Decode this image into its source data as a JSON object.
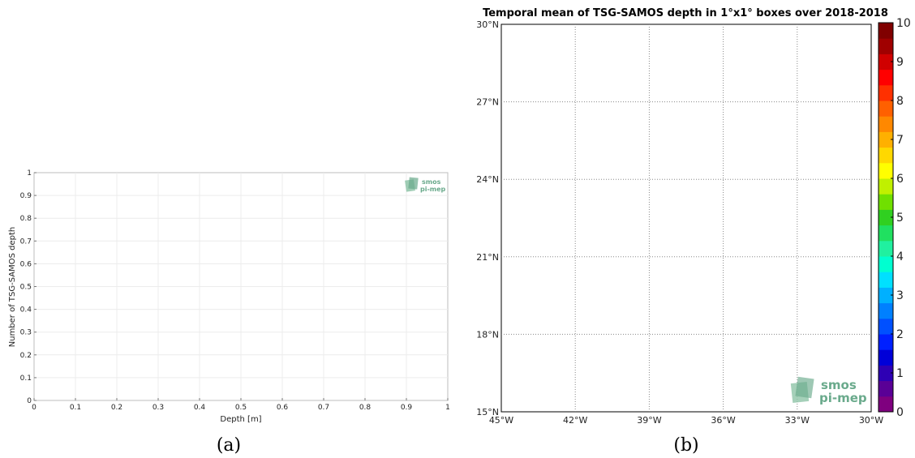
{
  "chart_data": [
    {
      "type": "line",
      "xlabel": "Depth [m]",
      "ylabel": "Number of TSG-SAMOS depth",
      "xlim": [
        0,
        1
      ],
      "ylim": [
        0,
        1
      ],
      "xticks": [
        "0",
        "0.1",
        "0.2",
        "0.3",
        "0.4",
        "0.5",
        "0.6",
        "0.7",
        "0.8",
        "0.9",
        "1"
      ],
      "yticks": [
        "0",
        "0.1",
        "0.2",
        "0.3",
        "0.4",
        "0.5",
        "0.6",
        "0.7",
        "0.8",
        "0.9",
        "1"
      ],
      "grid": true,
      "series": [],
      "logo": {
        "line1": "smos",
        "line2": "pi-mep",
        "color": "#6aaa8c"
      },
      "caption": "(a)"
    },
    {
      "type": "heatmap",
      "title": "Temporal mean of TSG-SAMOS depth in 1°x1° boxes over 2018-2018",
      "xlim": [
        -45,
        -30
      ],
      "ylim": [
        15,
        30
      ],
      "xticks": [
        "45°W",
        "42°W",
        "39°W",
        "36°W",
        "33°W",
        "30°W"
      ],
      "yticks": [
        "15°N",
        "18°N",
        "21°N",
        "24°N",
        "27°N",
        "30°N"
      ],
      "grid": true,
      "cells": [],
      "colorbar": {
        "min": 0,
        "max": 10,
        "ticks": [
          "0",
          "1",
          "2",
          "3",
          "4",
          "5",
          "6",
          "7",
          "8",
          "9",
          "10"
        ],
        "colors": [
          "#7f007f",
          "#5a0096",
          "#2e00b4",
          "#0000d8",
          "#0020ff",
          "#0050ff",
          "#0080ff",
          "#00b0ff",
          "#00e0ff",
          "#00ffd0",
          "#20f0a0",
          "#20e060",
          "#30d020",
          "#70e000",
          "#c0f000",
          "#ffff00",
          "#ffd800",
          "#ffb000",
          "#ff8800",
          "#ff6000",
          "#ff3000",
          "#ff0000",
          "#d00000",
          "#a00000",
          "#800000"
        ]
      },
      "logo": {
        "line1": "smos",
        "line2": "pi-mep",
        "color": "#6aaa8c"
      },
      "caption": "(b)"
    }
  ]
}
